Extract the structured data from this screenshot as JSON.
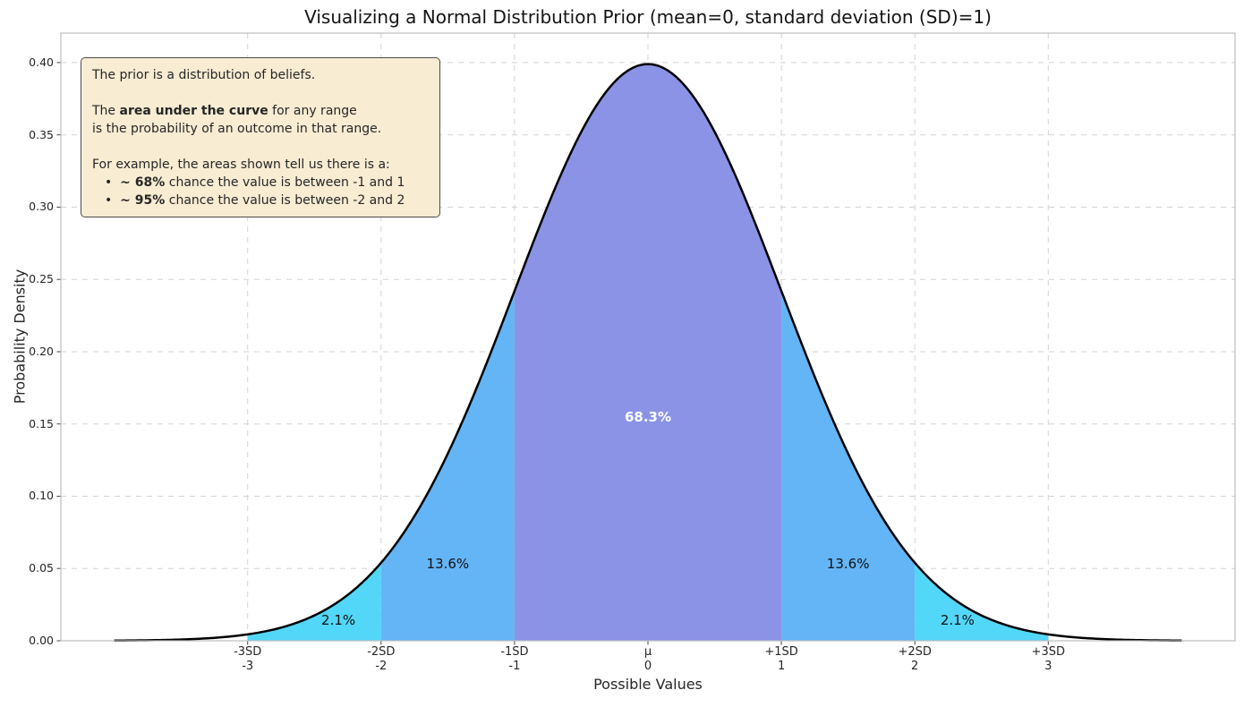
{
  "title": "Visualizing a Normal Distribution Prior (mean=0, standard deviation (SD)=1)",
  "annotation": {
    "p1": "The prior is a distribution of beliefs.",
    "p2_pre": "The ",
    "p2_bold": "area under the curve",
    "p2_post": " for any range",
    "p2_line2": "is the probability of an outcome in that range.",
    "p3_intro": "For example, the areas shown tell us there is a:",
    "bullet": "•",
    "b1_bold": "~ 68%",
    "b1_text": " chance the value is between -1 and 1",
    "b2_bold": "~ 95%",
    "b2_text": " chance the value is between -2 and 2"
  },
  "chart_data": {
    "type": "area",
    "title": "Visualizing a Normal Distribution Prior (mean=0, standard deviation (SD)=1)",
    "xlabel": "Possible Values",
    "ylabel": "Probability Density",
    "distribution": {
      "type": "normal",
      "mean": 0,
      "sd": 1,
      "peak_density": 0.3989
    },
    "xlim": [
      -4.4,
      4.4
    ],
    "ylim": [
      0,
      0.4204
    ],
    "curve_range": [
      -4,
      4
    ],
    "curve_color": "#000000",
    "grid": true,
    "grid_color": "#d3d3d3",
    "spine_color": "#bdbdbd",
    "x_ticks": [
      {
        "sd": "-3SD",
        "val": "-3",
        "x": -3
      },
      {
        "sd": "-2SD",
        "val": "-2",
        "x": -2
      },
      {
        "sd": "-1SD",
        "val": "-1",
        "x": -1
      },
      {
        "sd": "μ",
        "val": "0",
        "x": 0
      },
      {
        "sd": "+1SD",
        "val": "1",
        "x": 1
      },
      {
        "sd": "+2SD",
        "val": "2",
        "x": 2
      },
      {
        "sd": "+3SD",
        "val": "3",
        "x": 3
      }
    ],
    "y_ticks": [
      {
        "label": "0.00",
        "v": 0.0
      },
      {
        "label": "0.05",
        "v": 0.05
      },
      {
        "label": "0.10",
        "v": 0.1
      },
      {
        "label": "0.15",
        "v": 0.15
      },
      {
        "label": "0.20",
        "v": 0.2
      },
      {
        "label": "0.25",
        "v": 0.25
      },
      {
        "label": "0.30",
        "v": 0.3
      },
      {
        "label": "0.35",
        "v": 0.35
      },
      {
        "label": "0.40",
        "v": 0.4
      }
    ],
    "regions": [
      {
        "from": -3,
        "to": -2,
        "color": "#53d7f8",
        "label": "2.1%",
        "label_x": -2.32,
        "label_y": 0.014,
        "label_color": "#111111",
        "label_bold": false
      },
      {
        "from": -2,
        "to": -1,
        "color": "#64b5f6",
        "label": "13.6%",
        "label_x": -1.5,
        "label_y": 0.053,
        "label_color": "#111111",
        "label_bold": false
      },
      {
        "from": -1,
        "to": 1,
        "color": "#8b93e6",
        "label": "68.3%",
        "label_x": 0,
        "label_y": 0.155,
        "label_color": "#ffffff",
        "label_bold": true
      },
      {
        "from": 1,
        "to": 2,
        "color": "#64b5f6",
        "label": "13.6%",
        "label_x": 1.5,
        "label_y": 0.053,
        "label_color": "#111111",
        "label_bold": false
      },
      {
        "from": 2,
        "to": 3,
        "color": "#53d7f8",
        "label": "2.1%",
        "label_x": 2.32,
        "label_y": 0.014,
        "label_color": "#111111",
        "label_bold": false
      }
    ]
  }
}
